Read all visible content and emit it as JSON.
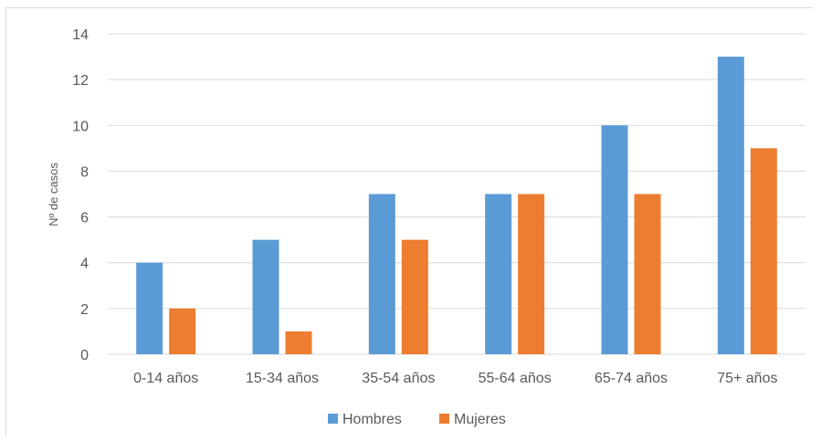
{
  "chart_data": {
    "type": "bar",
    "title": "",
    "xlabel": "",
    "ylabel": "Nº de casos",
    "ylim": [
      0,
      14
    ],
    "yticks": [
      0,
      2,
      4,
      6,
      8,
      10,
      12,
      14
    ],
    "grid": true,
    "legend_position": "bottom",
    "categories": [
      "0-14 años",
      "15-34 años",
      "35-54 años",
      "55-64 años",
      "65-74 años",
      "75+ años"
    ],
    "series": [
      {
        "name": "Hombres",
        "color": "#5b9bd5",
        "values": [
          4,
          5,
          7,
          7,
          10,
          13
        ]
      },
      {
        "name": "Mujeres",
        "color": "#ed7d31",
        "values": [
          2,
          1,
          5,
          7,
          7,
          9
        ]
      }
    ]
  }
}
